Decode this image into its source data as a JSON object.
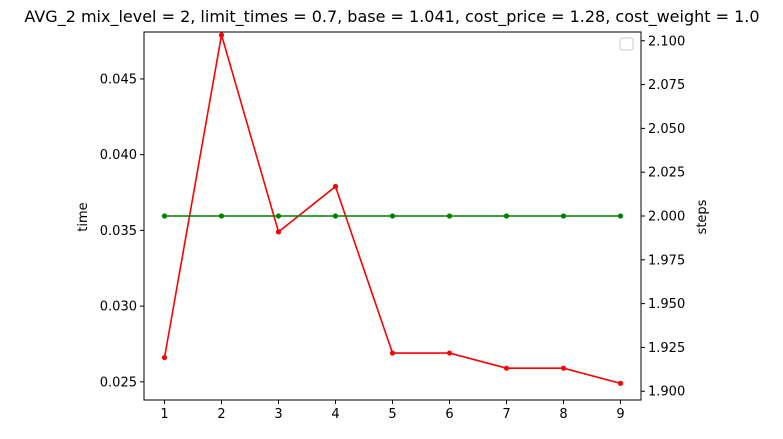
{
  "chart_data": {
    "type": "line",
    "title": "AVG_2 mix_level = 2, limit_times = 0.7, base = 1.041, cost_price = 1.28, cost_weight = 1.0",
    "x": [
      1,
      2,
      3,
      4,
      5,
      6,
      7,
      8,
      9
    ],
    "xlabel": "",
    "left_axis": {
      "label": "time",
      "ylim": [
        0.0238,
        0.0481
      ],
      "ticks": [
        "0.025",
        "0.030",
        "0.035",
        "0.040",
        "0.045"
      ]
    },
    "right_axis": {
      "label": "steps",
      "ylim": [
        1.895,
        2.105
      ],
      "ticks": [
        "1.900",
        "1.925",
        "1.950",
        "1.975",
        "2.000",
        "2.025",
        "2.050",
        "2.075",
        "2.100"
      ]
    },
    "series": [
      {
        "axis": "left",
        "color": "#ff0000",
        "marker": "circle",
        "values": [
          0.0266,
          0.0479,
          0.0349,
          0.0379,
          0.0269,
          0.0269,
          0.0259,
          0.0259,
          0.0249
        ]
      },
      {
        "axis": "right",
        "color": "#008000",
        "marker": "circle",
        "values": [
          2.0,
          2.0,
          2.0,
          2.0,
          2.0,
          2.0,
          2.0,
          2.0,
          2.0
        ]
      }
    ],
    "legend": {
      "placement": "top-right",
      "entries": []
    },
    "grid": false
  }
}
